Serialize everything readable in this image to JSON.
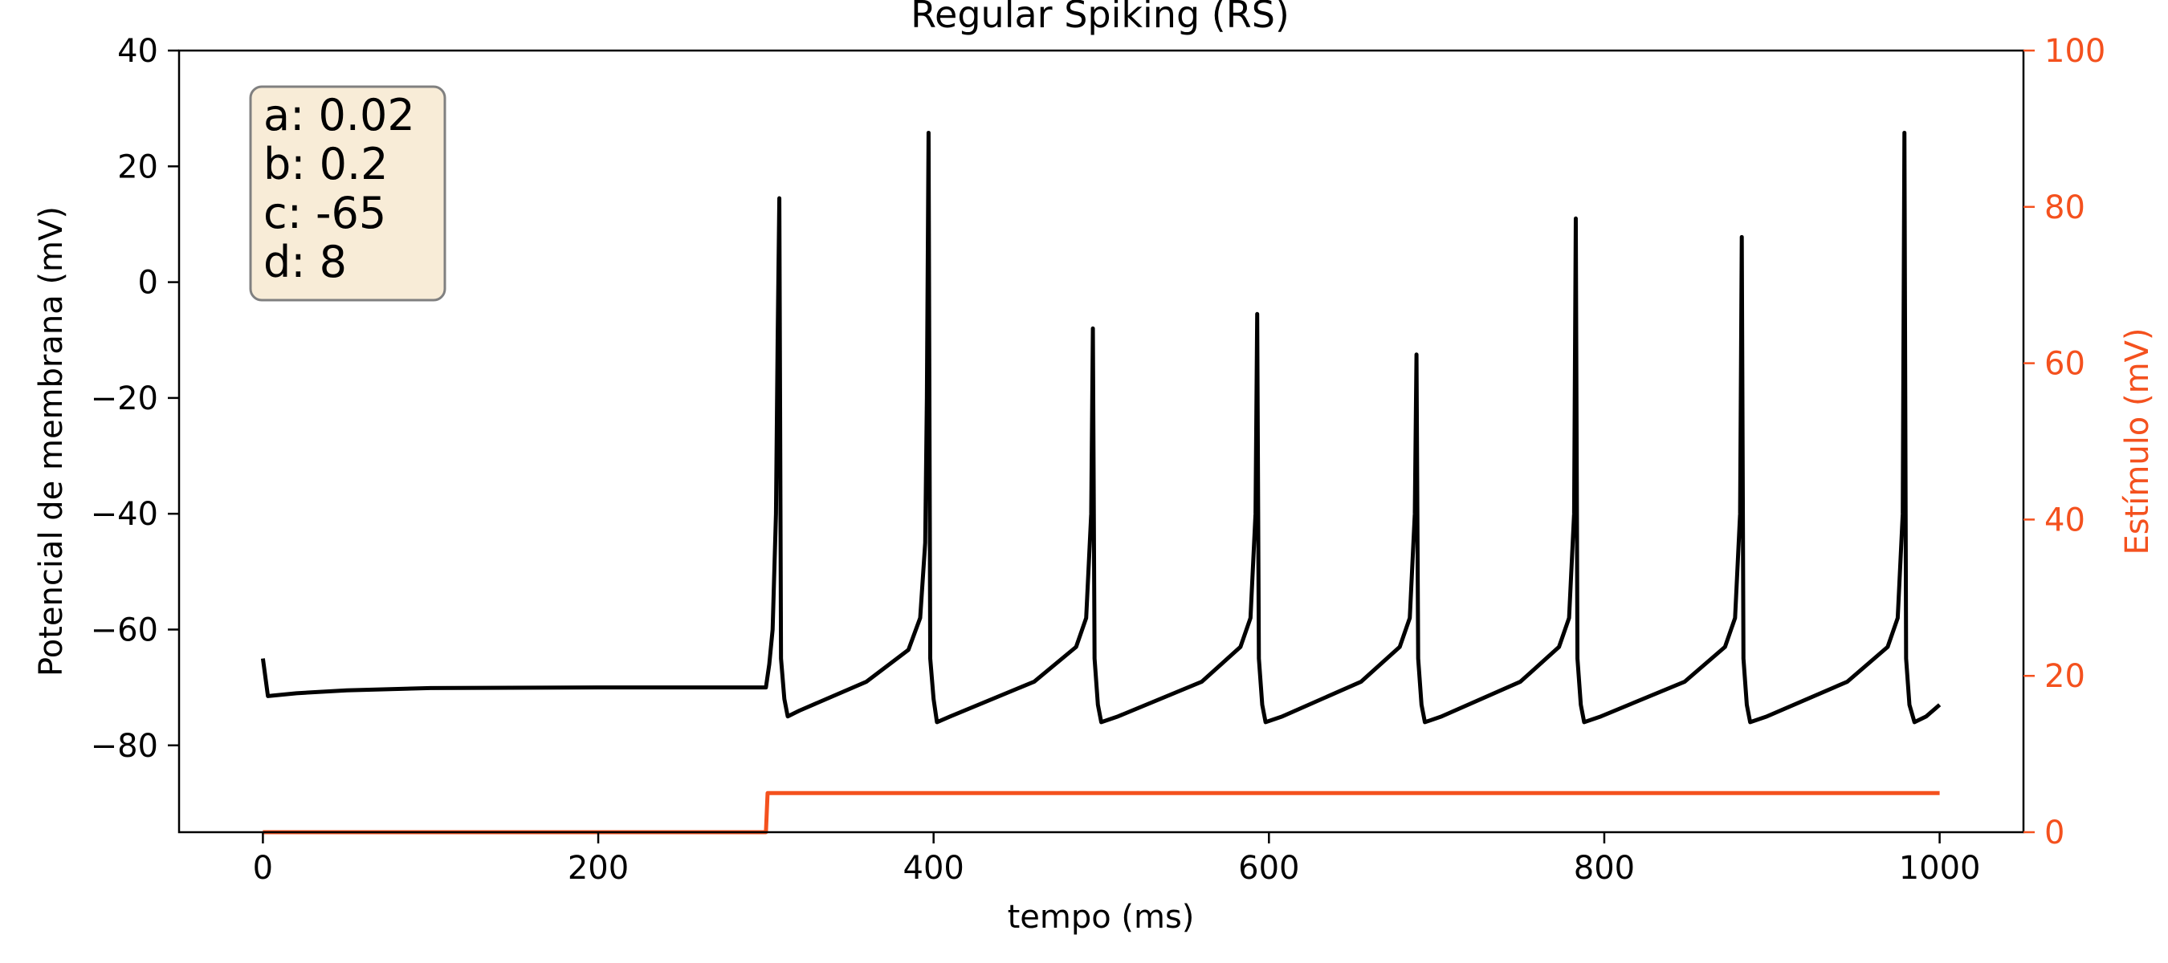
{
  "chart_data": {
    "type": "line",
    "title": "Regular Spiking (RS)",
    "xlabel": "tempo (ms)",
    "ylabel": "Potencial de membrana (mV)",
    "y2label": "Estímulo (mV)",
    "xlim": [
      -50,
      1050
    ],
    "ylim": [
      -95,
      40
    ],
    "y2lim": [
      0,
      100
    ],
    "xticks": [
      0,
      200,
      400,
      600,
      800,
      1000
    ],
    "yticks": [
      -80,
      -60,
      -40,
      -20,
      0,
      20,
      40
    ],
    "y2ticks": [
      0,
      20,
      40,
      60,
      80,
      100
    ],
    "tick_labels": {
      "x": [
        "0",
        "200",
        "400",
        "600",
        "800",
        "1000"
      ],
      "y": [
        "−80",
        "−60",
        "−40",
        "−20",
        "0",
        "20",
        "40"
      ],
      "y2": [
        "0",
        "20",
        "40",
        "60",
        "80",
        "100"
      ]
    },
    "grid": false,
    "colors": {
      "membrane": "#000000",
      "stimulus": "#f4511e",
      "box_fill": "#f8ecd7",
      "box_edge": "#808080"
    },
    "params_box": {
      "lines": [
        "a: 0.02",
        "b: 0.2",
        "c: -65",
        "d: 8"
      ],
      "position": "top-left"
    },
    "series": [
      {
        "axis": "left",
        "points": [
          [
            0,
            -65
          ],
          [
            3,
            -71.5
          ],
          [
            6,
            -71.4
          ],
          [
            20,
            -71
          ],
          [
            50,
            -70.5
          ],
          [
            100,
            -70.1
          ],
          [
            200,
            -70
          ],
          [
            300,
            -70
          ],
          [
            302,
            -66
          ],
          [
            304,
            -60
          ],
          [
            306,
            -40
          ],
          [
            307,
            -10
          ],
          [
            308,
            14.5
          ],
          [
            309,
            -65
          ],
          [
            311,
            -72
          ],
          [
            313,
            -75
          ],
          [
            320,
            -74
          ],
          [
            360,
            -69
          ],
          [
            385,
            -63.5
          ],
          [
            392,
            -58
          ],
          [
            395,
            -45
          ],
          [
            396,
            -20
          ],
          [
            397,
            25.8
          ],
          [
            398,
            -65
          ],
          [
            400,
            -72
          ],
          [
            402,
            -76
          ],
          [
            410,
            -75
          ],
          [
            460,
            -69
          ],
          [
            485,
            -63
          ],
          [
            491,
            -58
          ],
          [
            494,
            -40
          ],
          [
            495,
            -8
          ],
          [
            496,
            -65
          ],
          [
            498,
            -73
          ],
          [
            500,
            -76
          ],
          [
            510,
            -75
          ],
          [
            560,
            -69
          ],
          [
            583,
            -63
          ],
          [
            589,
            -58
          ],
          [
            592,
            -40
          ],
          [
            593,
            -5.5
          ],
          [
            594,
            -65
          ],
          [
            596,
            -73
          ],
          [
            598,
            -76
          ],
          [
            608,
            -75
          ],
          [
            655,
            -69
          ],
          [
            678,
            -63
          ],
          [
            684,
            -58
          ],
          [
            687,
            -40
          ],
          [
            688,
            -12.5
          ],
          [
            689,
            -65
          ],
          [
            691,
            -73
          ],
          [
            693,
            -76
          ],
          [
            703,
            -75
          ],
          [
            750,
            -69
          ],
          [
            773,
            -63
          ],
          [
            779,
            -58
          ],
          [
            782,
            -40
          ],
          [
            783,
            11
          ],
          [
            784,
            -65
          ],
          [
            786,
            -73
          ],
          [
            788,
            -76
          ],
          [
            798,
            -75
          ],
          [
            848,
            -69
          ],
          [
            872,
            -63
          ],
          [
            878,
            -58
          ],
          [
            881,
            -40
          ],
          [
            882,
            7.8
          ],
          [
            883,
            -65
          ],
          [
            885,
            -73
          ],
          [
            887,
            -76
          ],
          [
            897,
            -75
          ],
          [
            945,
            -69
          ],
          [
            969,
            -63
          ],
          [
            975,
            -58
          ],
          [
            978,
            -40
          ],
          [
            979,
            25.8
          ],
          [
            980,
            -65
          ],
          [
            982,
            -73
          ],
          [
            985,
            -76
          ],
          [
            992,
            -75
          ],
          [
            1000,
            -73
          ]
        ]
      },
      {
        "axis": "right",
        "points": [
          [
            0,
            0
          ],
          [
            300,
            0
          ],
          [
            301,
            5
          ],
          [
            1000,
            5
          ]
        ]
      }
    ]
  }
}
